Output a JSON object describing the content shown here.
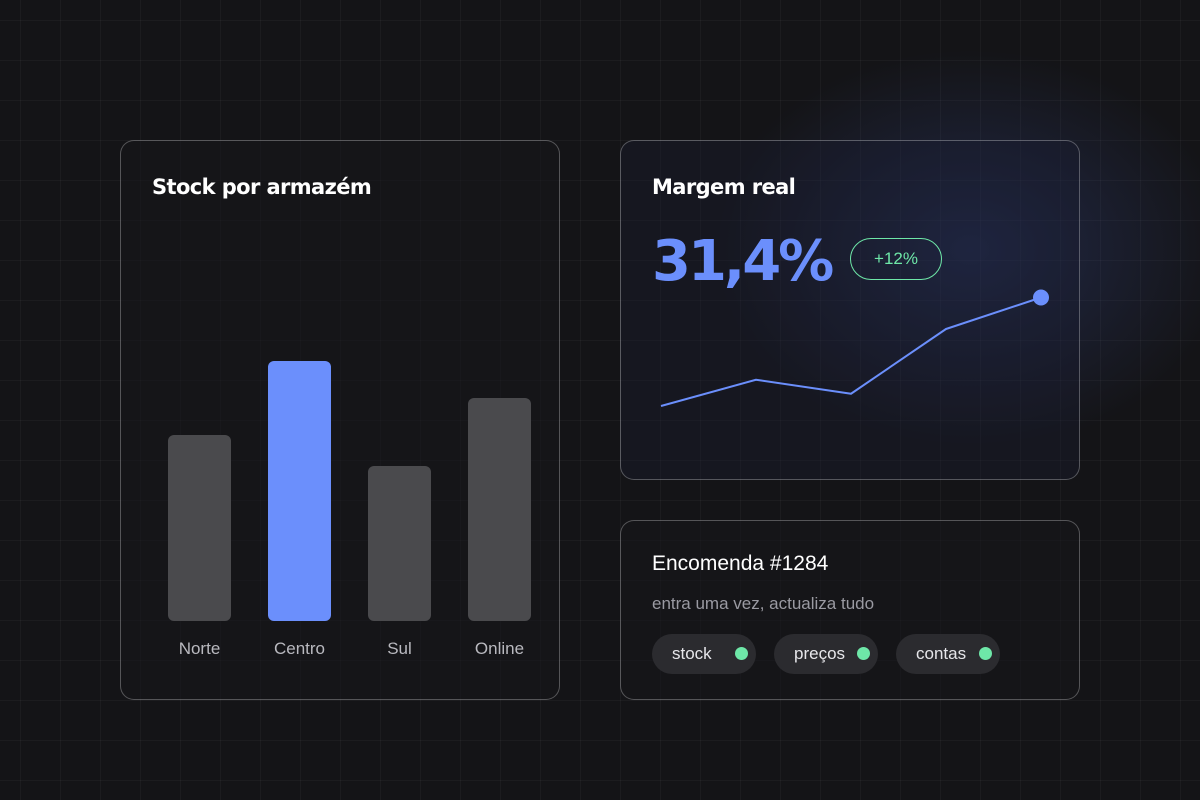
{
  "stock_card": {
    "title": "Stock por armazém",
    "chart_data": {
      "type": "bar",
      "categories": [
        "Norte",
        "Centro",
        "Sul",
        "Online"
      ],
      "values": [
        60,
        84,
        50,
        72
      ],
      "highlight": "Centro",
      "colors": {
        "bar": "#4a4a4d",
        "highlight": "#6b8ffc"
      }
    }
  },
  "margin_card": {
    "title": "Margem real",
    "value": "31,4%",
    "badge": "+12%",
    "chart_data": {
      "type": "line",
      "x": [
        1,
        2,
        3,
        4,
        5
      ],
      "values": [
        10,
        17.5,
        13.5,
        32,
        41
      ],
      "color": "#6b8ffc"
    }
  },
  "order_card": {
    "title": "Encomenda #1284",
    "subtitle": "entra uma vez, actualiza tudo",
    "tags": [
      {
        "label": "stock",
        "status_color": "#6ee7a8"
      },
      {
        "label": "preços",
        "status_color": "#6ee7a8"
      },
      {
        "label": "contas",
        "status_color": "#6ee7a8"
      }
    ]
  },
  "colors": {
    "accent": "#6b8ffc",
    "positive": "#6ee7a8",
    "background": "#141417"
  }
}
